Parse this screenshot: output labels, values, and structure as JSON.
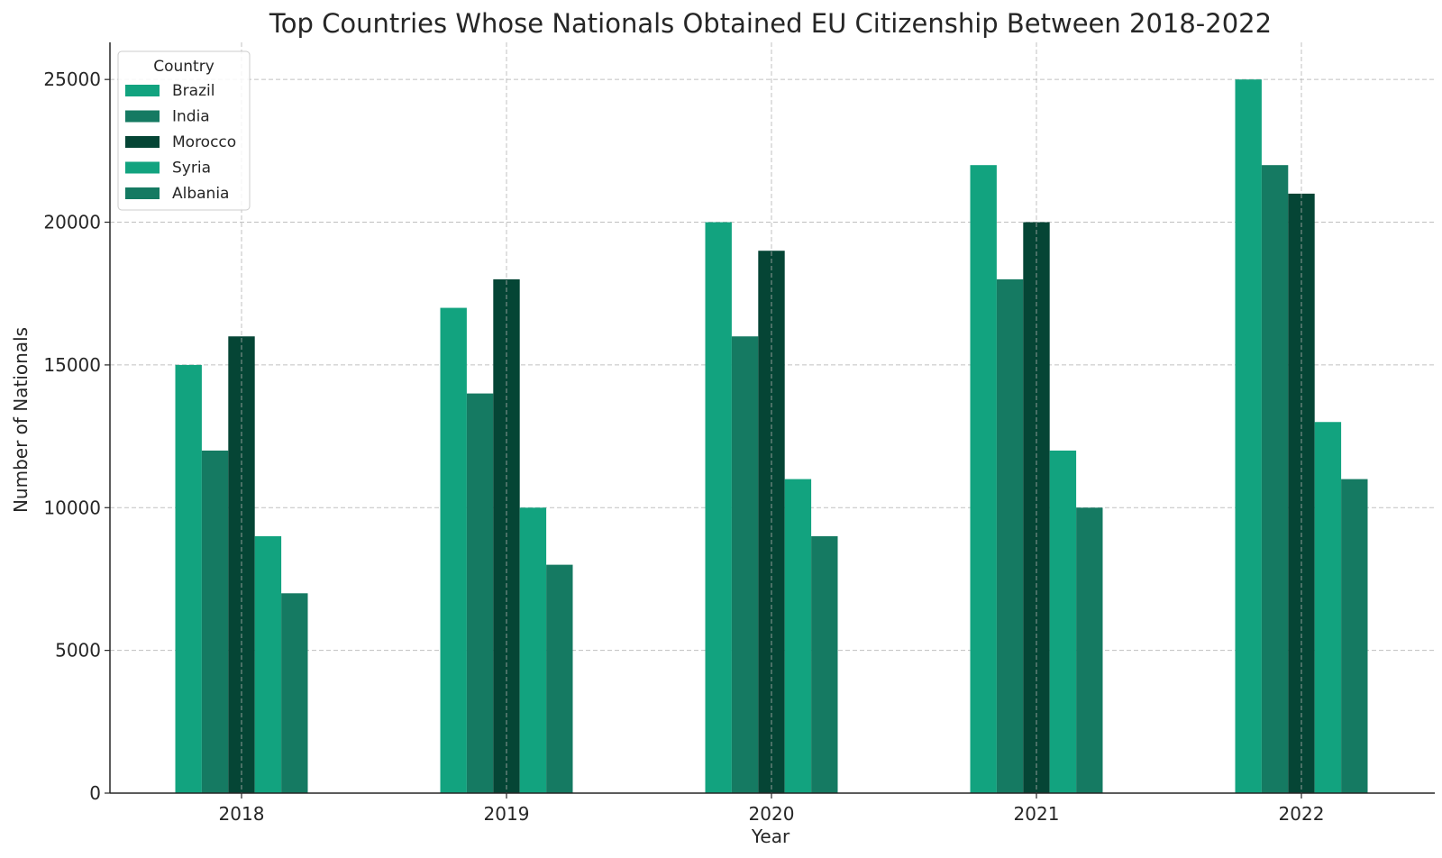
{
  "chart_data": {
    "type": "bar",
    "title": "Top Countries Whose Nationals Obtained EU Citizenship Between 2018-2022",
    "xlabel": "Year",
    "ylabel": "Number of Nationals",
    "categories": [
      "2018",
      "2019",
      "2020",
      "2021",
      "2022"
    ],
    "ylim": [
      0,
      26300
    ],
    "yticks": [
      0,
      5000,
      10000,
      15000,
      20000,
      25000
    ],
    "grid": true,
    "legend": {
      "title": "Country",
      "position": "top-left"
    },
    "series": [
      {
        "name": "Brazil",
        "color": "#12a37f",
        "values": [
          15000,
          17000,
          20000,
          22000,
          25000
        ]
      },
      {
        "name": "India",
        "color": "#157a62",
        "values": [
          12000,
          14000,
          16000,
          18000,
          22000
        ]
      },
      {
        "name": "Morocco",
        "color": "#054535",
        "values": [
          16000,
          18000,
          19000,
          20000,
          21000
        ]
      },
      {
        "name": "Syria",
        "color": "#12a37f",
        "values": [
          9000,
          10000,
          11000,
          12000,
          13000
        ]
      },
      {
        "name": "Albania",
        "color": "#157a62",
        "values": [
          7000,
          8000,
          9000,
          10000,
          11000
        ]
      }
    ]
  }
}
